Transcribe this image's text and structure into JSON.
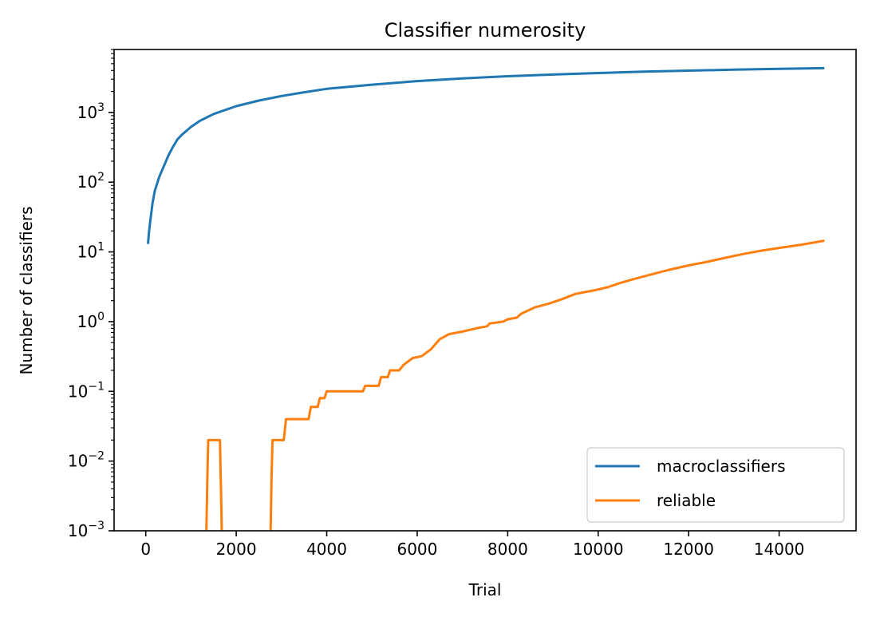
{
  "chart_data": {
    "type": "line",
    "title": "Classifier numerosity",
    "xlabel": "Trial",
    "ylabel": "Number of classifiers",
    "xlim": [
      -700,
      15700
    ],
    "ylim": [
      0.001,
      8000
    ],
    "yscale": "log",
    "grid": false,
    "legend_position": "lower-right",
    "x_ticks": [
      {
        "value": 0,
        "label": "0"
      },
      {
        "value": 2000,
        "label": "2000"
      },
      {
        "value": 4000,
        "label": "4000"
      },
      {
        "value": 6000,
        "label": "6000"
      },
      {
        "value": 8000,
        "label": "8000"
      },
      {
        "value": 10000,
        "label": "10000"
      },
      {
        "value": 12000,
        "label": "12000"
      },
      {
        "value": 14000,
        "label": "14000"
      }
    ],
    "y_ticks": [
      {
        "value": 0.001,
        "base": "10",
        "exp": "−3"
      },
      {
        "value": 0.01,
        "base": "10",
        "exp": "−2"
      },
      {
        "value": 0.1,
        "base": "10",
        "exp": "−1"
      },
      {
        "value": 1,
        "base": "10",
        "exp": "0"
      },
      {
        "value": 10,
        "base": "10",
        "exp": "1"
      },
      {
        "value": 100,
        "base": "10",
        "exp": "2"
      },
      {
        "value": 1000,
        "base": "10",
        "exp": "3"
      }
    ],
    "series": [
      {
        "name": "macroclassifiers",
        "color": "#1f77b4",
        "points": [
          [
            50,
            13
          ],
          [
            75,
            20
          ],
          [
            100,
            28
          ],
          [
            150,
            50
          ],
          [
            200,
            75
          ],
          [
            300,
            120
          ],
          [
            400,
            170
          ],
          [
            500,
            240
          ],
          [
            600,
            320
          ],
          [
            700,
            410
          ],
          [
            800,
            480
          ],
          [
            1000,
            620
          ],
          [
            1200,
            760
          ],
          [
            1500,
            950
          ],
          [
            2000,
            1230
          ],
          [
            2500,
            1480
          ],
          [
            3000,
            1720
          ],
          [
            3500,
            1950
          ],
          [
            4000,
            2180
          ],
          [
            5000,
            2500
          ],
          [
            6000,
            2820
          ],
          [
            7000,
            3080
          ],
          [
            8000,
            3310
          ],
          [
            9000,
            3500
          ],
          [
            10000,
            3680
          ],
          [
            11000,
            3840
          ],
          [
            12000,
            3980
          ],
          [
            13000,
            4110
          ],
          [
            14000,
            4220
          ],
          [
            15000,
            4320
          ]
        ]
      },
      {
        "name": "reliable",
        "color": "#ff7f0e",
        "segments": [
          [
            [
              1340,
              0.001
            ],
            [
              1360,
              0.005
            ],
            [
              1380,
              0.02
            ],
            [
              1640,
              0.02
            ],
            [
              1660,
              0.005
            ],
            [
              1680,
              0.001
            ]
          ],
          [
            [
              2760,
              0.001
            ],
            [
              2780,
              0.005
            ],
            [
              2800,
              0.02
            ],
            [
              3050,
              0.02
            ],
            [
              3100,
              0.04
            ],
            [
              3600,
              0.04
            ],
            [
              3650,
              0.06
            ],
            [
              3800,
              0.06
            ],
            [
              3850,
              0.08
            ],
            [
              3950,
              0.08
            ],
            [
              4000,
              0.1
            ],
            [
              4800,
              0.1
            ],
            [
              4850,
              0.12
            ],
            [
              5150,
              0.12
            ],
            [
              5200,
              0.16
            ],
            [
              5350,
              0.16
            ],
            [
              5400,
              0.2
            ],
            [
              5600,
              0.2
            ],
            [
              5700,
              0.24
            ],
            [
              5900,
              0.3
            ],
            [
              6100,
              0.32
            ],
            [
              6300,
              0.4
            ],
            [
              6500,
              0.56
            ],
            [
              6700,
              0.66
            ],
            [
              7000,
              0.72
            ],
            [
              7300,
              0.8
            ],
            [
              7550,
              0.86
            ],
            [
              7600,
              0.94
            ],
            [
              7900,
              1.0
            ],
            [
              8000,
              1.08
            ],
            [
              8200,
              1.14
            ],
            [
              8300,
              1.3
            ],
            [
              8600,
              1.6
            ],
            [
              8900,
              1.8
            ],
            [
              9200,
              2.1
            ],
            [
              9500,
              2.5
            ],
            [
              9900,
              2.8
            ],
            [
              10200,
              3.1
            ],
            [
              10500,
              3.6
            ],
            [
              10800,
              4.1
            ],
            [
              11200,
              4.8
            ],
            [
              11600,
              5.6
            ],
            [
              12000,
              6.4
            ],
            [
              12400,
              7.2
            ],
            [
              12800,
              8.2
            ],
            [
              13200,
              9.3
            ],
            [
              13600,
              10.4
            ],
            [
              14000,
              11.4
            ],
            [
              14500,
              12.7
            ],
            [
              15000,
              14.5
            ]
          ]
        ]
      }
    ]
  }
}
